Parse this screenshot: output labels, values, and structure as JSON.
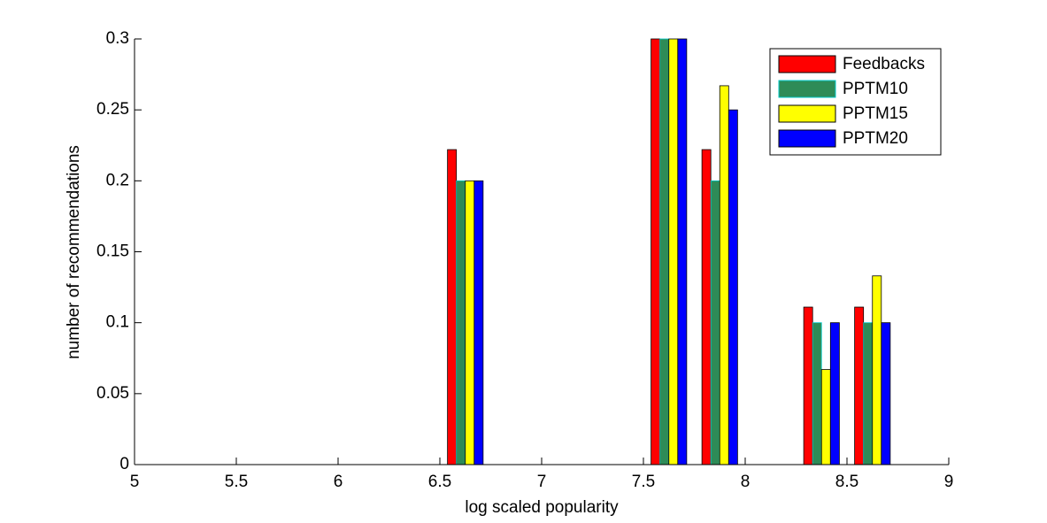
{
  "chart_data": {
    "type": "bar",
    "xlabel": "log scaled popularity",
    "ylabel": "number of recommendations",
    "x": [
      5.125,
      5.375,
      5.625,
      5.875,
      6.125,
      6.375,
      6.625,
      6.875,
      7.125,
      7.375,
      7.625,
      7.875,
      8.125,
      8.375,
      8.625,
      8.875
    ],
    "series": [
      {
        "name": "Feedbacks",
        "color": "#ff0000",
        "values": [
          0,
          0,
          0,
          0,
          0,
          0,
          0.222,
          0,
          0,
          0,
          0.3,
          0.222,
          0,
          0.111,
          0.111,
          0
        ]
      },
      {
        "name": "PPTM10",
        "color": "#2e8b57",
        "values": [
          0,
          0,
          0,
          0,
          0,
          0,
          0.2,
          0,
          0,
          0,
          0.3,
          0.2,
          0,
          0.1,
          0.1,
          0
        ]
      },
      {
        "name": "PPTM15",
        "color": "#ffff00",
        "values": [
          0,
          0,
          0,
          0,
          0,
          0,
          0.2,
          0,
          0,
          0,
          0.3,
          0.267,
          0,
          0.067,
          0.133,
          0
        ]
      },
      {
        "name": "PPTM20",
        "color": "#0000ff",
        "values": [
          0,
          0,
          0,
          0,
          0,
          0,
          0.2,
          0,
          0,
          0,
          0.3,
          0.25,
          0,
          0.1,
          0.1,
          0
        ]
      }
    ],
    "xlim": [
      5,
      9
    ],
    "xticks": [
      5,
      5.5,
      6,
      6.5,
      7,
      7.5,
      8,
      8.5,
      9
    ],
    "ylim": [
      0,
      0.3
    ],
    "yticks": [
      0,
      0.05,
      0.1,
      0.15,
      0.2,
      0.25,
      0.3
    ],
    "legend": "upper right"
  }
}
